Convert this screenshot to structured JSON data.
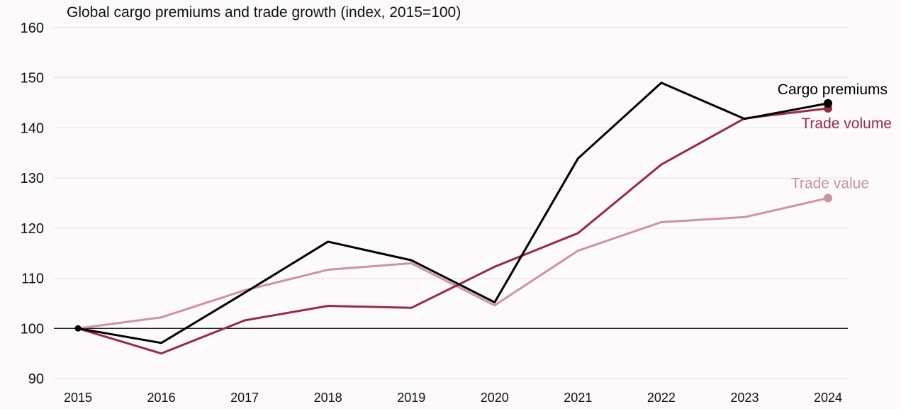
{
  "chart_data": {
    "type": "line",
    "title": "Global cargo premiums and trade growth (index, 2015=100)",
    "xlabel": "",
    "ylabel": "",
    "x": [
      "2015",
      "2016",
      "2017",
      "2018",
      "2019",
      "2020",
      "2021",
      "2022",
      "2023",
      "2024"
    ],
    "ylim": [
      90,
      160
    ],
    "yticks": [
      "90",
      "100",
      "110",
      "120",
      "130",
      "140",
      "150",
      "160"
    ],
    "baseline": 100,
    "grid": true,
    "legend": "direct labels at line ends",
    "series": [
      {
        "name": "Trade value",
        "color": "#cc949e",
        "values": [
          100,
          102.2,
          107.6,
          111.7,
          113.0,
          104.6,
          115.5,
          121.2,
          122.2,
          126.0
        ]
      },
      {
        "name": "Trade volume",
        "color": "#982b43",
        "values": [
          100,
          95.0,
          101.6,
          104.5,
          104.1,
          112.3,
          119.0,
          132.7,
          141.9,
          143.9
        ]
      },
      {
        "name": "Cargo premiums",
        "color": "#000000",
        "values": [
          100,
          97.1,
          107.1,
          117.3,
          113.6,
          105.2,
          133.9,
          149.0,
          141.8,
          144.9
        ]
      }
    ]
  }
}
